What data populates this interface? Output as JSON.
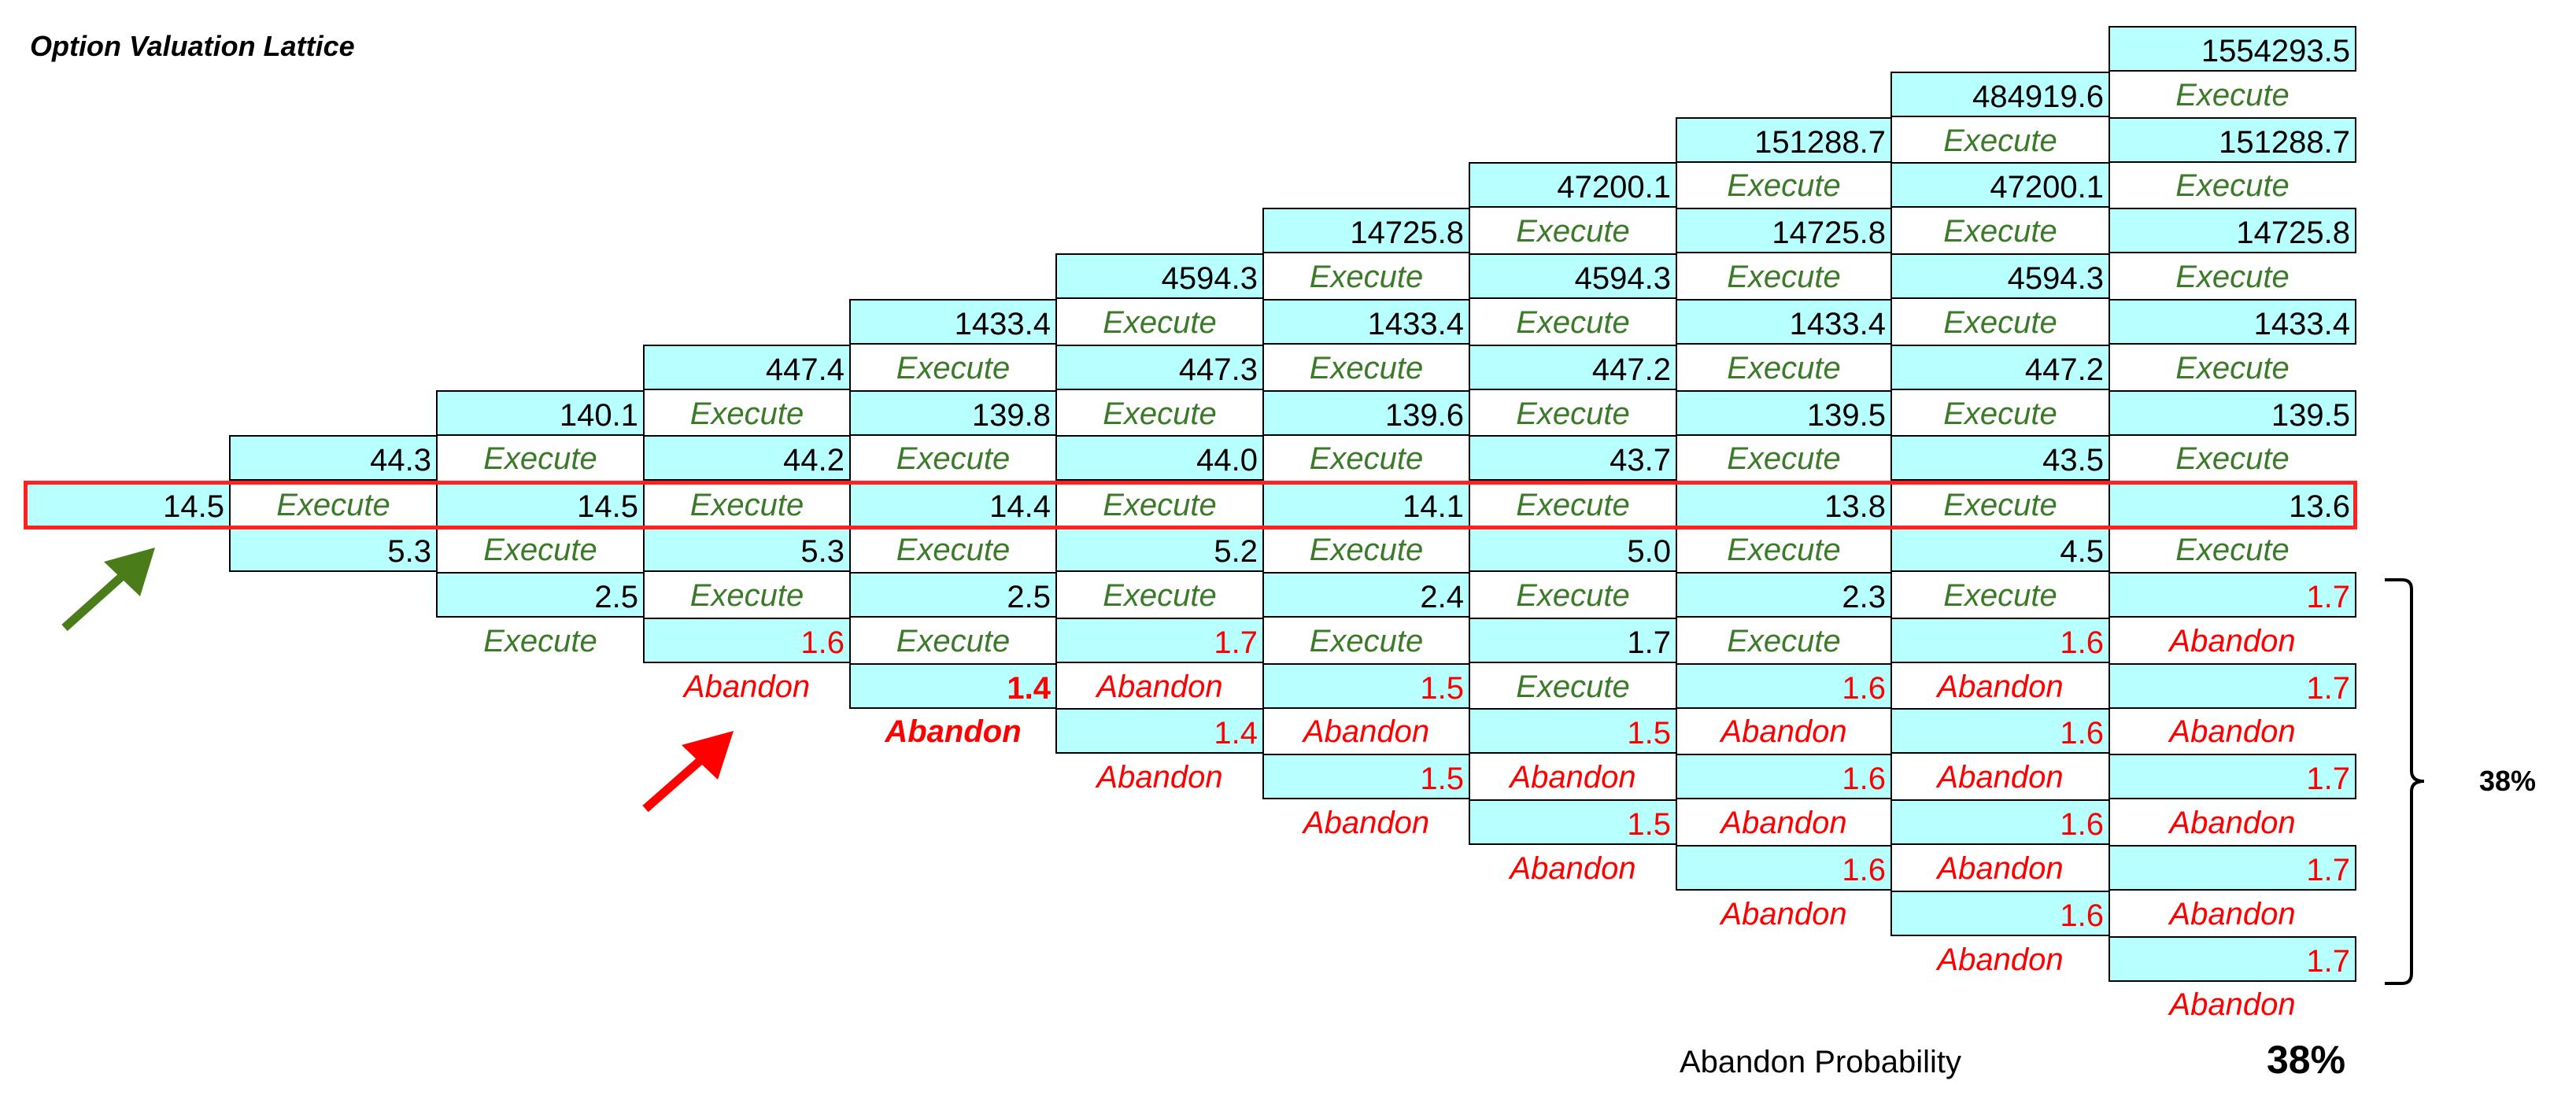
{
  "title": "Option Valuation Lattice",
  "colors": {
    "cell_fill": "#b8ffff",
    "execute": "#3a7a28",
    "abandon": "#ff0000",
    "highlight": "#ff2020",
    "arrow_green": "#4a7d1a",
    "arrow_red": "#ff0000"
  },
  "lattice": {
    "columns": [
      [
        "14.5"
      ],
      [
        "44.3",
        "Execute",
        "5.3"
      ],
      [
        "140.1",
        "Execute",
        "14.5",
        "Execute",
        "2.5",
        "Execute"
      ],
      [
        "447.4",
        "Execute",
        "44.2",
        "Execute",
        "5.3",
        "Execute",
        "1.6",
        "Abandon"
      ],
      [
        "1433.4",
        "Execute",
        "139.8",
        "Execute",
        "14.4",
        "Execute",
        "2.5",
        "Execute",
        "1.4",
        "Abandon"
      ],
      [
        "4594.3",
        "Execute",
        "447.3",
        "Execute",
        "44.0",
        "Execute",
        "5.2",
        "Execute",
        "1.7",
        "Abandon",
        "1.4",
        "Abandon"
      ],
      [
        "14725.8",
        "Execute",
        "1433.4",
        "Execute",
        "139.6",
        "Execute",
        "14.1",
        "Execute",
        "2.4",
        "Execute",
        "1.5",
        "Abandon",
        "1.5",
        "Abandon"
      ],
      [
        "47200.1",
        "Execute",
        "4594.3",
        "Execute",
        "447.2",
        "Execute",
        "43.7",
        "Execute",
        "5.0",
        "Execute",
        "1.7",
        "Execute",
        "1.5",
        "Abandon",
        "1.5",
        "Abandon"
      ],
      [
        "151288.7",
        "Execute",
        "14725.8",
        "Execute",
        "1433.4",
        "Execute",
        "139.5",
        "Execute",
        "13.8",
        "Execute",
        "2.3",
        "Execute",
        "1.6",
        "Abandon",
        "1.6",
        "Abandon",
        "1.6",
        "Abandon"
      ],
      [
        "484919.6",
        "Execute",
        "47200.1",
        "Execute",
        "4594.3",
        "Execute",
        "447.2",
        "Execute",
        "43.5",
        "Execute",
        "4.5",
        "Execute",
        "1.6",
        "Abandon",
        "1.6",
        "Abandon",
        "1.6",
        "Abandon",
        "1.6",
        "Abandon"
      ],
      [
        "1554293.5",
        "Execute",
        "151288.7",
        "Execute",
        "14725.8",
        "Execute",
        "1433.4",
        "Execute",
        "139.5",
        "Execute",
        "13.6",
        "Execute",
        "1.7",
        "Abandon",
        "1.7",
        "Abandon",
        "1.7",
        "Abandon",
        "1.7",
        "Abandon",
        "1.7",
        "Abandon"
      ]
    ]
  },
  "bracket_percent": "38%",
  "abandon_probability": {
    "label": "Abandon Probability",
    "value": "38%"
  }
}
